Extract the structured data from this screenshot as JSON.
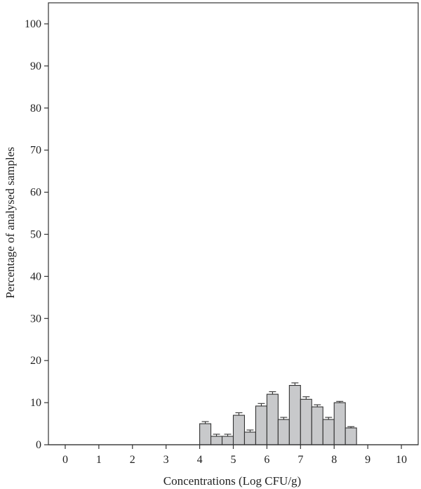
{
  "chart_data": {
    "type": "bar",
    "title": "",
    "xlabel": "Concentrations (Log CFU/g)",
    "ylabel": "Percentage of analysed samples",
    "xlim": [
      -0.5,
      10.5
    ],
    "ylim": [
      0,
      105
    ],
    "x_ticks": [
      0,
      1,
      2,
      3,
      4,
      5,
      6,
      7,
      8,
      9,
      10
    ],
    "y_ticks": [
      0,
      10,
      20,
      30,
      40,
      50,
      60,
      70,
      80,
      90,
      100
    ],
    "bin_width": 0.333,
    "bars": [
      {
        "x_start": 4.0,
        "value": 5,
        "error": 0.5
      },
      {
        "x_start": 4.333,
        "value": 2,
        "error": 0.5
      },
      {
        "x_start": 4.667,
        "value": 2,
        "error": 0.5
      },
      {
        "x_start": 5.0,
        "value": 7,
        "error": 0.6
      },
      {
        "x_start": 5.333,
        "value": 3,
        "error": 0.5
      },
      {
        "x_start": 5.667,
        "value": 9.2,
        "error": 0.6
      },
      {
        "x_start": 6.0,
        "value": 12,
        "error": 0.6
      },
      {
        "x_start": 6.333,
        "value": 6,
        "error": 0.5
      },
      {
        "x_start": 6.667,
        "value": 14.1,
        "error": 0.6
      },
      {
        "x_start": 7.0,
        "value": 10.8,
        "error": 0.6
      },
      {
        "x_start": 7.333,
        "value": 9,
        "error": 0.5
      },
      {
        "x_start": 7.667,
        "value": 6,
        "error": 0.5
      },
      {
        "x_start": 8.0,
        "value": 10,
        "error": 0.3
      },
      {
        "x_start": 8.333,
        "value": 4,
        "error": 0.3
      }
    ],
    "grid": false,
    "colors": {
      "bar_fill": "#c8c9cb",
      "bar_stroke": "#333333",
      "axis": "#333333"
    }
  }
}
